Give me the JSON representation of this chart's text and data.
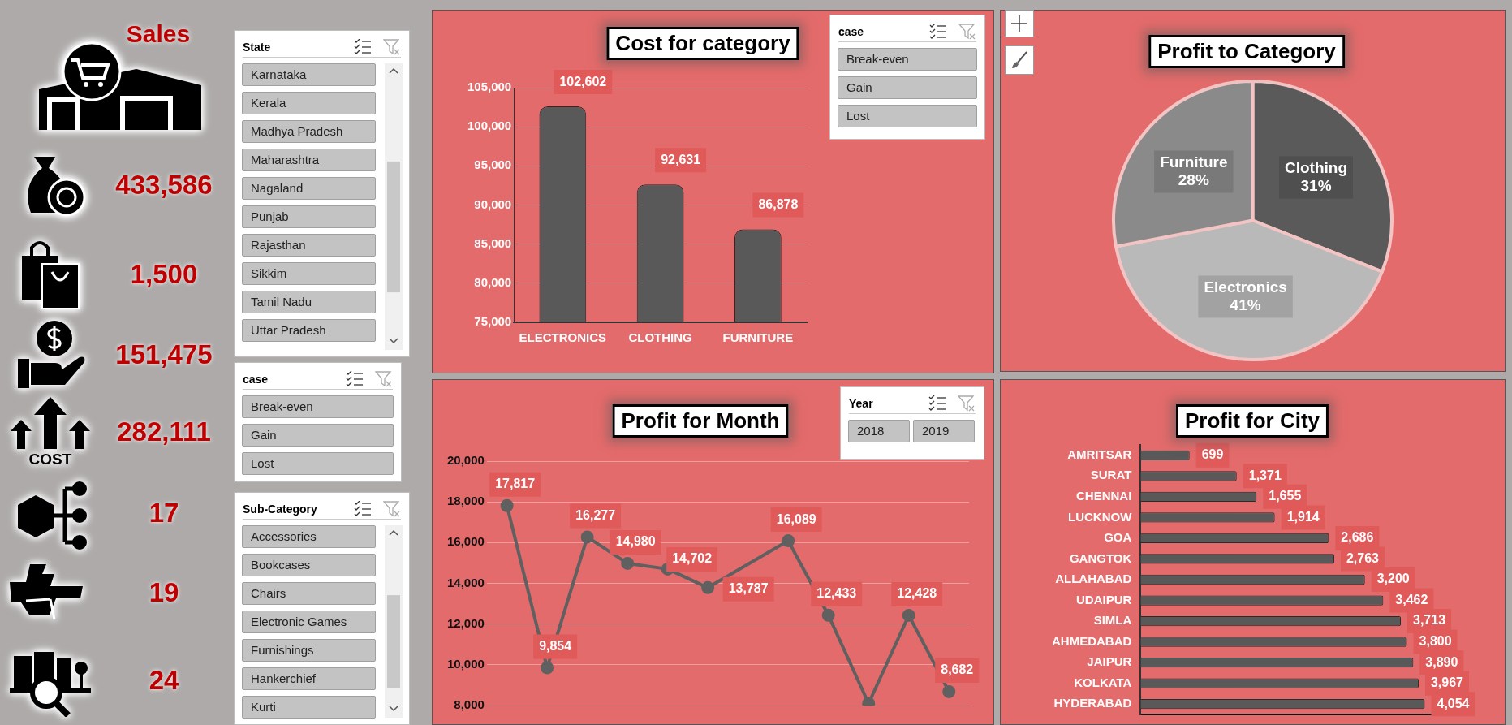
{
  "chart_data": [
    {
      "type": "other",
      "title": "Sales",
      "annotations": [
        "433,586",
        "1,500",
        "151,475",
        "282,111",
        "17",
        "19",
        "24",
        "COST"
      ]
    },
    {
      "type": "other",
      "title": "State",
      "annotations": [
        "Karnataka",
        "Kerala",
        "Madhya Pradesh",
        "Maharashtra",
        "Nagaland",
        "Punjab",
        "Rajasthan",
        "Sikkim",
        "Tamil Nadu",
        "Uttar Pradesh"
      ]
    },
    {
      "type": "other",
      "title": "case",
      "annotations": [
        "Break-even",
        "Gain",
        "Lost"
      ]
    },
    {
      "type": "other",
      "title": "Sub-Category",
      "annotations": [
        "Accessories",
        "Bookcases",
        "Chairs",
        "Electronic Games",
        "Furnishings",
        "Hankerchief",
        "Kurti"
      ]
    },
    {
      "type": "bar",
      "title": "Cost for category",
      "categories": [
        "ELECTRONICS",
        "CLOTHING",
        "FURNITURE"
      ],
      "values": [
        102602,
        92631,
        86878
      ],
      "value_labels": [
        "102,602",
        "92,631",
        "86,878"
      ],
      "color": "#595959",
      "ylim": [
        75000,
        105000
      ],
      "yticks": [
        {
          "value": 75000,
          "label": "75,000"
        },
        {
          "value": 80000,
          "label": "80,000"
        },
        {
          "value": 85000,
          "label": "85,000"
        },
        {
          "value": 90000,
          "label": "90,000"
        },
        {
          "value": 95000,
          "label": "95,000"
        },
        {
          "value": 100000,
          "label": "100,000"
        },
        {
          "value": 105000,
          "label": "105,000"
        }
      ],
      "grid": "y"
    },
    {
      "type": "other",
      "title": "case",
      "annotations": [
        "Break-even",
        "Gain",
        "Lost"
      ]
    },
    {
      "type": "pie",
      "title": "Profit to Category",
      "categories": [
        "Clothing",
        "Electronics",
        "Furniture"
      ],
      "values": [
        31,
        41,
        28
      ],
      "colors": [
        "#5a5a5a",
        "#b9b9b9",
        "#8a8a8a"
      ],
      "value_labels": [
        "31%",
        "41%",
        "28%"
      ]
    },
    {
      "type": "line",
      "title": "Profit for Month",
      "categories": [
        null,
        null,
        null,
        null,
        null,
        null,
        null,
        null,
        null,
        null,
        null,
        null
      ],
      "values": [
        17817,
        9854,
        16277,
        14980,
        14702,
        13787,
        null,
        16089,
        12433,
        8100,
        12428,
        8682
      ],
      "value_labels": [
        "17,817",
        "9,854",
        "16,277",
        "14,980",
        "14,702",
        "13,787",
        null,
        "16,089",
        "12,433",
        null,
        "12,428",
        "8,682"
      ],
      "color": "#606060",
      "ylim": [
        8000,
        20000
      ],
      "yticks": [
        {
          "value": 8000,
          "label": "8,000"
        },
        {
          "value": 10000,
          "label": "10,000"
        },
        {
          "value": 12000,
          "label": "12,000"
        },
        {
          "value": 14000,
          "label": "14,000"
        },
        {
          "value": 16000,
          "label": "16,000"
        },
        {
          "value": 18000,
          "label": "18,000"
        },
        {
          "value": 20000,
          "label": "20,000"
        }
      ],
      "grid": "y",
      "marker": "circle",
      "tick_labels": "y"
    },
    {
      "type": "other",
      "title": "Year",
      "annotations": [
        "2018",
        "2019"
      ]
    },
    {
      "type": "bar",
      "orientation": "horizontal",
      "title": "Profit for City",
      "categories": [
        "AMRITSAR",
        "SURAT",
        "CHENNAI",
        "LUCKNOW",
        "GOA",
        "GANGTOK",
        "ALLAHABAD",
        "UDAIPUR",
        "SIMLA",
        "AHMEDABAD",
        "JAIPUR",
        "KOLKATA",
        "HYDERABAD"
      ],
      "values": [
        699,
        1371,
        1655,
        1914,
        2686,
        2763,
        3200,
        3462,
        3713,
        3800,
        3890,
        3967,
        4054
      ],
      "value_labels": [
        "699",
        "1,371",
        "1,655",
        "1,914",
        "2,686",
        "2,763",
        "3,200",
        "3,462",
        "3,713",
        "3,800",
        "3,890",
        "3,967",
        "4,054"
      ],
      "color": "#595959",
      "tick_labels": "y"
    }
  ]
}
